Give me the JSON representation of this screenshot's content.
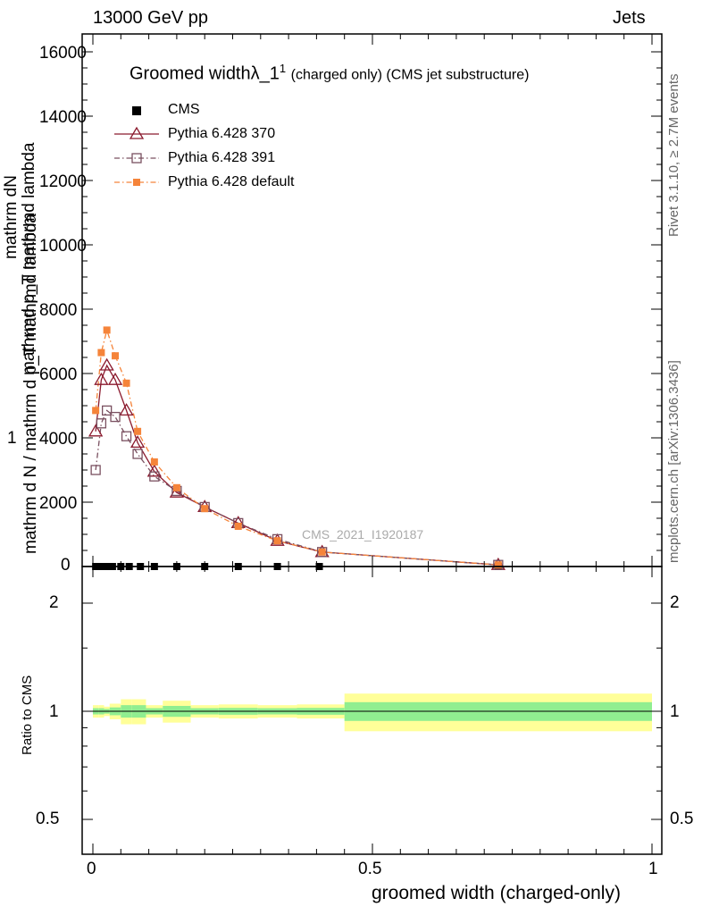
{
  "header": {
    "energy_label": "13000 GeV pp",
    "process_label": "Jets"
  },
  "side_labels": {
    "rivet": "Rivet 3.1.10, ≥ 2.7M events",
    "mcplots": "mcplots.cern.ch [arXiv:1306.3436]"
  },
  "watermark": "CMS_2021_I1920187",
  "colors": {
    "cms": "#000000",
    "p370": "#8b1a2e",
    "p391": "#7a5060",
    "pdef": "#f5843a",
    "band_outer": "#ffff99",
    "band_inner": "#90ee90"
  },
  "chart_data": [
    {
      "type": "scatter",
      "title_main": "Groomed width",
      "title_symbol": "λ_1",
      "title_sup": "1",
      "title_suffix": "(charged only) (CMS jet substructure)",
      "ylabel_numerator": "1",
      "ylabel_denominator": "mathrm d N / mathrm d p_T mathrmd lambda",
      "ylabel_top": "mathrm d",
      "ylabel_top2": "N",
      "ylabel_mid": "mathrmd p_T mathrmd lambda",
      "xlim": [
        0,
        1
      ],
      "ylim": [
        0,
        16000
      ],
      "yticks": [
        0,
        2000,
        4000,
        6000,
        8000,
        10000,
        12000,
        14000,
        16000
      ],
      "ytick_labels": [
        "0",
        "2000",
        "4000",
        "6000",
        "8000",
        "10000",
        "12000",
        "14000",
        "16000"
      ],
      "legend": [
        "CMS",
        "Pythia 6.428 370",
        "Pythia 6.428 391",
        "Pythia 6.428 default"
      ],
      "series": [
        {
          "name": "CMS",
          "x": [
            0.005,
            0.015,
            0.025,
            0.035,
            0.05,
            0.065,
            0.085,
            0.11,
            0.15,
            0.2,
            0.26,
            0.33,
            0.405,
            0.725
          ],
          "y": [
            0,
            0,
            0,
            0,
            0,
            0,
            0,
            0,
            0,
            0,
            0,
            0,
            0,
            0
          ]
        },
        {
          "name": "Pythia 6.428 370",
          "x": [
            0.005,
            0.015,
            0.025,
            0.04,
            0.06,
            0.08,
            0.11,
            0.15,
            0.2,
            0.26,
            0.33,
            0.41,
            0.725
          ],
          "y": [
            4200,
            5800,
            6250,
            5800,
            4850,
            3850,
            2950,
            2300,
            1850,
            1350,
            800,
            450,
            50
          ]
        },
        {
          "name": "Pythia 6.428 391",
          "x": [
            0.005,
            0.015,
            0.025,
            0.04,
            0.06,
            0.08,
            0.11,
            0.15,
            0.2,
            0.26,
            0.33,
            0.41,
            0.725
          ],
          "y": [
            3000,
            4450,
            4850,
            4650,
            4050,
            3500,
            2800,
            2350,
            1850,
            1350,
            850,
            450,
            50
          ]
        },
        {
          "name": "Pythia 6.428 default",
          "x": [
            0.005,
            0.015,
            0.025,
            0.04,
            0.06,
            0.08,
            0.11,
            0.15,
            0.2,
            0.26,
            0.33,
            0.41,
            0.725
          ],
          "y": [
            4850,
            6650,
            7350,
            6550,
            5700,
            4200,
            3250,
            2450,
            1800,
            1250,
            800,
            450,
            50
          ]
        }
      ]
    },
    {
      "type": "area",
      "ylabel": "Ratio to CMS",
      "xlabel": "groomed width (charged-only)",
      "xlim": [
        0,
        1
      ],
      "xticks": [
        0,
        0.5,
        1
      ],
      "xtick_labels": [
        "0",
        "0.5",
        "1"
      ],
      "yticks": [
        0.5,
        1,
        2
      ],
      "ytick_labels": [
        "0.5",
        "1",
        "2"
      ],
      "bins": [
        [
          0.0,
          0.01,
          0.04,
          0.02
        ],
        [
          0.01,
          0.02,
          0.04,
          0.02
        ],
        [
          0.02,
          0.03,
          0.03,
          0.015
        ],
        [
          0.03,
          0.05,
          0.05,
          0.025
        ],
        [
          0.05,
          0.07,
          0.08,
          0.04
        ],
        [
          0.07,
          0.095,
          0.08,
          0.04
        ],
        [
          0.095,
          0.125,
          0.04,
          0.02
        ],
        [
          0.125,
          0.175,
          0.07,
          0.035
        ],
        [
          0.175,
          0.225,
          0.04,
          0.02
        ],
        [
          0.225,
          0.295,
          0.045,
          0.022
        ],
        [
          0.295,
          0.365,
          0.04,
          0.02
        ],
        [
          0.365,
          0.45,
          0.045,
          0.022
        ],
        [
          0.45,
          1.0,
          0.12,
          0.06
        ]
      ],
      "reference": 1
    }
  ]
}
